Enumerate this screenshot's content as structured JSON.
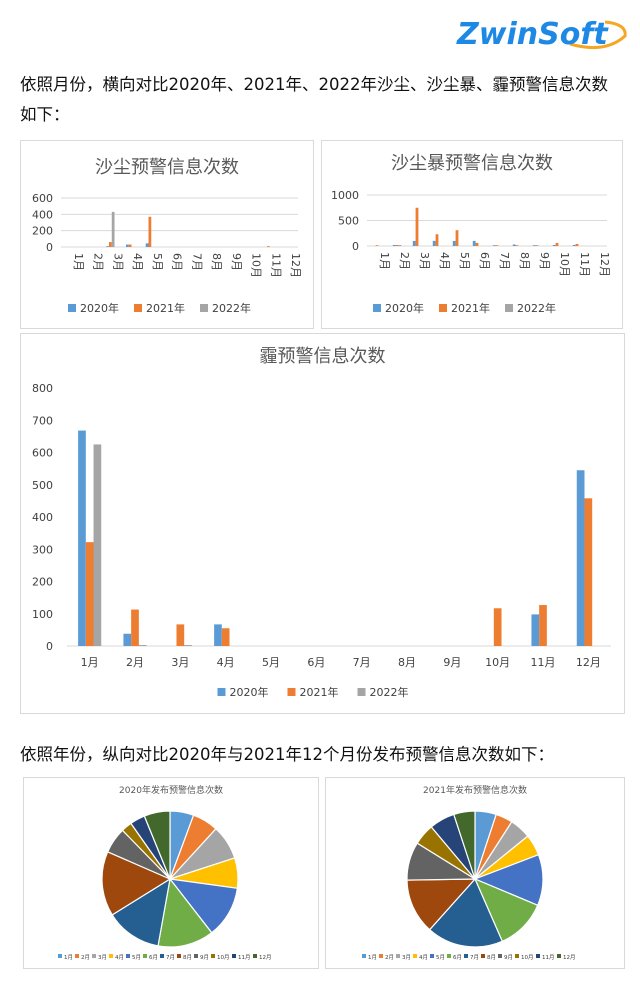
{
  "logo": {
    "text": "ZwinSoft"
  },
  "intro_text": "依照月份，横向对比2020年、2021年、2022年沙尘、沙尘暴、霾预警信息次数如下：",
  "pie_intro_text": "依照年份，纵向对比2020年与2021年12个月份发布预警信息次数如下：",
  "colors": {
    "2020": "#5B9BD5",
    "2021": "#ED7D31",
    "2022": "#A5A5A5"
  },
  "chart_data": [
    {
      "type": "bar",
      "title": "沙尘预警信息次数",
      "categories": [
        "1月",
        "2月",
        "3月",
        "4月",
        "5月",
        "6月",
        "7月",
        "8月",
        "9月",
        "10月",
        "11月",
        "12月"
      ],
      "yticks": [
        "0",
        "200",
        "400",
        "600"
      ],
      "ylim": [
        0,
        600
      ],
      "grid": true,
      "legend": "bottom",
      "series": [
        {
          "name": "2020年",
          "values": [
            0,
            0,
            10,
            30,
            45,
            0,
            0,
            0,
            0,
            0,
            0,
            0
          ]
        },
        {
          "name": "2021年",
          "values": [
            0,
            0,
            60,
            30,
            370,
            0,
            0,
            0,
            0,
            0,
            10,
            0
          ]
        },
        {
          "name": "2022年",
          "values": [
            0,
            0,
            430,
            0,
            0,
            0,
            0,
            0,
            0,
            0,
            0,
            0
          ]
        }
      ]
    },
    {
      "type": "bar",
      "title": "沙尘暴预警信息次数",
      "categories": [
        "1月",
        "2月",
        "3月",
        "4月",
        "5月",
        "6月",
        "7月",
        "8月",
        "9月",
        "10月",
        "11月",
        "12月"
      ],
      "yticks": [
        "0",
        "500",
        "1000"
      ],
      "ylim": [
        0,
        1000
      ],
      "grid": true,
      "legend": "bottom",
      "series": [
        {
          "name": "2020年",
          "values": [
            0,
            20,
            100,
            100,
            100,
            100,
            15,
            30,
            15,
            20,
            20,
            0
          ]
        },
        {
          "name": "2021年",
          "values": [
            15,
            20,
            750,
            230,
            310,
            60,
            15,
            15,
            15,
            60,
            40,
            0
          ]
        },
        {
          "name": "2022年",
          "values": [
            0,
            20,
            0,
            0,
            0,
            0,
            0,
            0,
            0,
            0,
            0,
            0
          ]
        }
      ]
    },
    {
      "type": "bar",
      "title": "霾预警信息次数",
      "categories": [
        "1月",
        "2月",
        "3月",
        "4月",
        "5月",
        "6月",
        "7月",
        "8月",
        "9月",
        "10月",
        "11月",
        "12月"
      ],
      "yticks": [
        "0",
        "100",
        "200",
        "300",
        "400",
        "500",
        "600",
        "700",
        "800"
      ],
      "ylim": [
        0,
        800
      ],
      "grid": false,
      "legend": "bottom",
      "series": [
        {
          "name": "2020年",
          "values": [
            668,
            38,
            0,
            67,
            0,
            0,
            0,
            0,
            0,
            0,
            98,
            545
          ]
        },
        {
          "name": "2021年",
          "values": [
            322,
            113,
            67,
            55,
            0,
            0,
            0,
            0,
            0,
            117,
            127,
            458
          ]
        },
        {
          "name": "2022年",
          "values": [
            625,
            3,
            3,
            0,
            0,
            0,
            0,
            0,
            0,
            0,
            0,
            0
          ]
        }
      ]
    },
    {
      "type": "pie",
      "title": "2020年发布预警信息次数",
      "categories": [
        "1月",
        "2月",
        "3月",
        "4月",
        "5月",
        "6月",
        "7月",
        "8月",
        "9月",
        "10月",
        "11月",
        "12月"
      ],
      "values": [
        5.5,
        6,
        8,
        7,
        12,
        13,
        13,
        15,
        6,
        2.5,
        3.5,
        6
      ],
      "legend": "bottom",
      "colors": [
        "#5B9BD5",
        "#ED7D31",
        "#A5A5A5",
        "#FFC000",
        "#4472C4",
        "#70AD47",
        "#255E91",
        "#9E480E",
        "#636363",
        "#997300",
        "#264478",
        "#43682B"
      ]
    },
    {
      "type": "pie",
      "title": "2021年发布预警信息次数",
      "categories": [
        "1月",
        "2月",
        "3月",
        "4月",
        "5月",
        "6月",
        "7月",
        "8月",
        "9月",
        "10月",
        "11月",
        "12月"
      ],
      "values": [
        5,
        4,
        5,
        5,
        12,
        12,
        18,
        13,
        9,
        5,
        6,
        5
      ],
      "legend": "bottom",
      "colors": [
        "#5B9BD5",
        "#ED7D31",
        "#A5A5A5",
        "#FFC000",
        "#4472C4",
        "#70AD47",
        "#255E91",
        "#9E480E",
        "#636363",
        "#997300",
        "#264478",
        "#43682B"
      ]
    }
  ]
}
